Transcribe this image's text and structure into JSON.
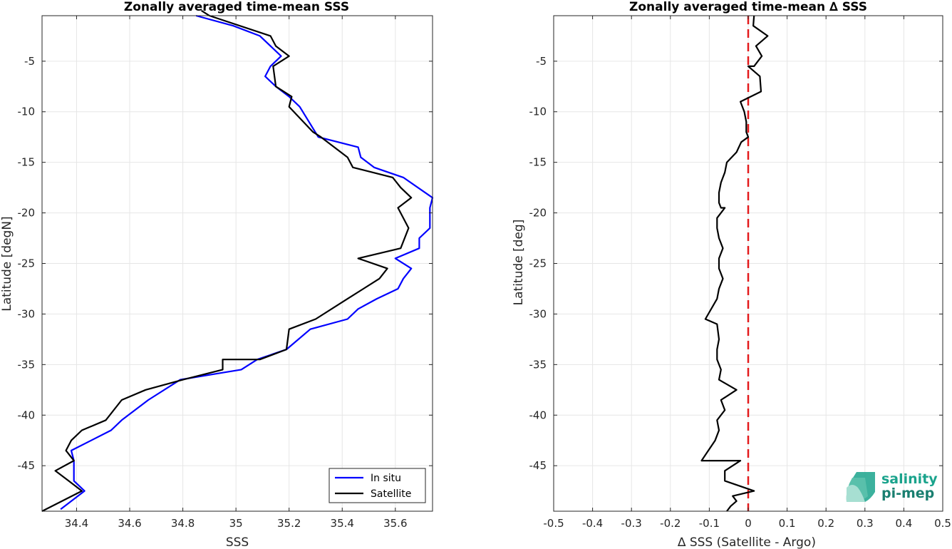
{
  "chart_data": [
    {
      "type": "line",
      "title": "Zonally averaged time-mean SSS",
      "xlabel": "SSS",
      "ylabel": "Latitude [degN]",
      "xlim": [
        34.27,
        35.74
      ],
      "ylim": [
        -49.5,
        -0.5
      ],
      "xticks": [
        34.4,
        34.6,
        34.8,
        35.0,
        35.2,
        35.4,
        35.6
      ],
      "xtick_labels": [
        "34.4",
        "34.6",
        "34.8",
        "35",
        "35.2",
        "35.4",
        "35.6"
      ],
      "yticks": [
        -5,
        -10,
        -15,
        -20,
        -25,
        -30,
        -35,
        -40,
        -45
      ],
      "ytick_labels": [
        "-5",
        "-10",
        "-15",
        "-20",
        "-25",
        "-30",
        "-35",
        "-40",
        "-45"
      ],
      "grid": true,
      "legend": "bottom-right",
      "series": [
        {
          "name": "In situ",
          "color": "#0000ff",
          "x": [
            34.85,
            34.99,
            35.09,
            35.17,
            35.13,
            35.11,
            35.15,
            35.2,
            35.24,
            35.31,
            35.46,
            35.47,
            35.52,
            35.63,
            35.74,
            35.73,
            35.73,
            35.69,
            35.69,
            35.6,
            35.66,
            35.63,
            35.61,
            35.53,
            35.46,
            35.42,
            35.28,
            35.19,
            35.08,
            35.02,
            34.95,
            34.79,
            34.67,
            34.57,
            34.53,
            34.38,
            34.39,
            34.39,
            34.43,
            34.34
          ],
          "y": [
            -0.5,
            -1.5,
            -2.5,
            -4.5,
            -5.5,
            -6.5,
            -7.5,
            -8.5,
            -9.5,
            -12.5,
            -13.5,
            -14.5,
            -15.5,
            -16.5,
            -18.5,
            -19.5,
            -21.5,
            -22.5,
            -23.5,
            -24.5,
            -25.5,
            -26.5,
            -27.5,
            -28.5,
            -29.5,
            -30.5,
            -31.5,
            -33.5,
            -34.5,
            -35.5,
            -35.8,
            -36.5,
            -38.5,
            -40.5,
            -41.5,
            -43.5,
            -44.5,
            -46.5,
            -47.5,
            -49.3
          ]
        },
        {
          "name": "Satellite",
          "color": "#000000",
          "x": [
            34.87,
            34.9,
            35.13,
            35.15,
            35.2,
            35.14,
            35.15,
            35.21,
            35.2,
            35.29,
            35.32,
            35.42,
            35.44,
            35.59,
            35.62,
            35.66,
            35.61,
            35.65,
            35.62,
            35.46,
            35.57,
            35.54,
            35.42,
            35.3,
            35.2,
            35.19,
            35.09,
            34.95,
            34.95,
            34.8,
            34.66,
            34.57,
            34.51,
            34.42,
            34.38,
            34.36,
            34.39,
            34.32,
            34.37,
            34.42,
            34.27
          ],
          "y": [
            0.0,
            -0.5,
            -2.5,
            -3.5,
            -4.5,
            -5.5,
            -7.5,
            -8.5,
            -9.5,
            -12.0,
            -12.5,
            -14.5,
            -15.5,
            -16.5,
            -17.5,
            -18.5,
            -19.5,
            -21.5,
            -23.5,
            -24.5,
            -25.5,
            -26.5,
            -28.5,
            -30.5,
            -31.5,
            -33.5,
            -34.5,
            -34.5,
            -35.5,
            -36.5,
            -37.5,
            -38.5,
            -40.5,
            -41.5,
            -42.5,
            -43.5,
            -44.5,
            -45.5,
            -46.5,
            -47.5,
            -49.5
          ]
        }
      ]
    },
    {
      "type": "line",
      "title": "Zonally averaged time-mean ∆ SSS",
      "xlabel": "∆ SSS (Satellite - Argo)",
      "ylabel": "Latitude [deg]",
      "xlim": [
        -0.5,
        0.5
      ],
      "ylim": [
        -49.5,
        -0.5
      ],
      "xticks": [
        -0.5,
        -0.4,
        -0.3,
        -0.2,
        -0.1,
        0,
        0.1,
        0.2,
        0.3,
        0.4,
        0.5
      ],
      "xtick_labels": [
        "-0.5",
        "-0.4",
        "-0.3",
        "-0.2",
        "-0.1",
        "0",
        "0.1",
        "0.2",
        "0.3",
        "0.4",
        "0.5"
      ],
      "yticks": [
        -5,
        -10,
        -15,
        -20,
        -25,
        -30,
        -35,
        -40,
        -45
      ],
      "ytick_labels": [
        "-5",
        "-10",
        "-15",
        "-20",
        "-25",
        "-30",
        "-35",
        "-40",
        "-45"
      ],
      "grid": true,
      "reference_line": {
        "x": 0,
        "color": "#e31a1c",
        "style": "dashed"
      },
      "series": [
        {
          "color": "#000000",
          "x": [
            0.015,
            0.013,
            0.05,
            0.02,
            0.035,
            0.015,
            0.0,
            0.03,
            0.033,
            -0.02,
            -0.01,
            -0.005,
            -0.005,
            0.0,
            -0.018,
            -0.03,
            -0.055,
            -0.06,
            -0.07,
            -0.075,
            -0.075,
            -0.07,
            -0.06,
            -0.08,
            -0.08,
            -0.075,
            -0.065,
            -0.075,
            -0.075,
            -0.065,
            -0.075,
            -0.08,
            -0.11,
            -0.08,
            -0.075,
            -0.08,
            -0.08,
            -0.07,
            -0.075,
            -0.03,
            -0.07,
            -0.06,
            -0.08,
            -0.075,
            -0.085,
            -0.12,
            -0.02,
            -0.06,
            -0.06,
            0.015,
            -0.04,
            -0.03,
            -0.045,
            -0.055
          ],
          "y": [
            -0.5,
            -1.5,
            -2.5,
            -3.5,
            -4.5,
            -5.5,
            -5.5,
            -6.5,
            -8.0,
            -9.0,
            -10.0,
            -11.0,
            -12.0,
            -12.5,
            -13.0,
            -14.0,
            -15.0,
            -16.0,
            -17.0,
            -18.0,
            -19.0,
            -19.5,
            -19.5,
            -20.5,
            -21.5,
            -22.5,
            -23.5,
            -24.5,
            -25.5,
            -26.5,
            -27.5,
            -28.5,
            -30.5,
            -31.0,
            -32.5,
            -33.5,
            -34.5,
            -35.5,
            -36.5,
            -37.5,
            -38.5,
            -39.5,
            -40.5,
            -41.5,
            -42.5,
            -44.5,
            -44.5,
            -45.5,
            -46.5,
            -47.5,
            -48.0,
            -48.5,
            -49.0,
            -49.5
          ]
        }
      ]
    }
  ],
  "legend": {
    "items": [
      "In situ",
      "Satellite"
    ]
  },
  "logo": {
    "line1": "salinity",
    "line2": "pi-mep",
    "color": "#1aa38c"
  }
}
